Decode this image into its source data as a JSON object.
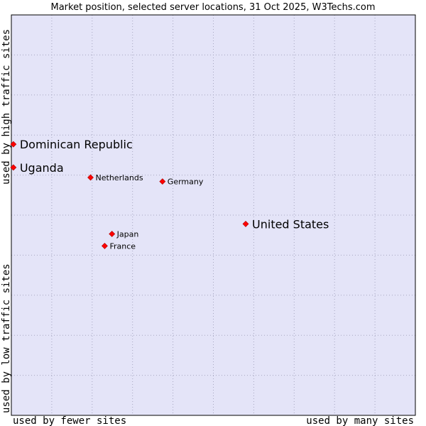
{
  "chart_data": {
    "type": "scatter",
    "title": "Market position, selected server locations, 31 Oct 2025, W3Techs.com",
    "xlabel_left": "used by fewer sites",
    "xlabel_right": "used by many sites",
    "ylabel_bottom": "used by low traffic sites",
    "ylabel_top": "used by high traffic sites",
    "xlim": [
      0,
      10
    ],
    "ylim": [
      0,
      10
    ],
    "grid": true,
    "colors": {
      "plot_bg": "#e4e4f8",
      "grid": "#a6a6c0",
      "frame": "#000000",
      "marker": "#ff0000",
      "marker_edge": "#aa0000"
    },
    "points": [
      {
        "name": "Dominican Republic",
        "x": 0.05,
        "y": 6.77,
        "size": "large"
      },
      {
        "name": "Uganda",
        "x": 0.05,
        "y": 6.19,
        "size": "large"
      },
      {
        "name": "Netherlands",
        "x": 1.96,
        "y": 5.94,
        "size": "small"
      },
      {
        "name": "Germany",
        "x": 3.74,
        "y": 5.84,
        "size": "small"
      },
      {
        "name": "United States",
        "x": 5.8,
        "y": 4.78,
        "size": "large"
      },
      {
        "name": "Japan",
        "x": 2.49,
        "y": 4.53,
        "size": "small"
      },
      {
        "name": "France",
        "x": 2.31,
        "y": 4.23,
        "size": "small"
      }
    ]
  }
}
